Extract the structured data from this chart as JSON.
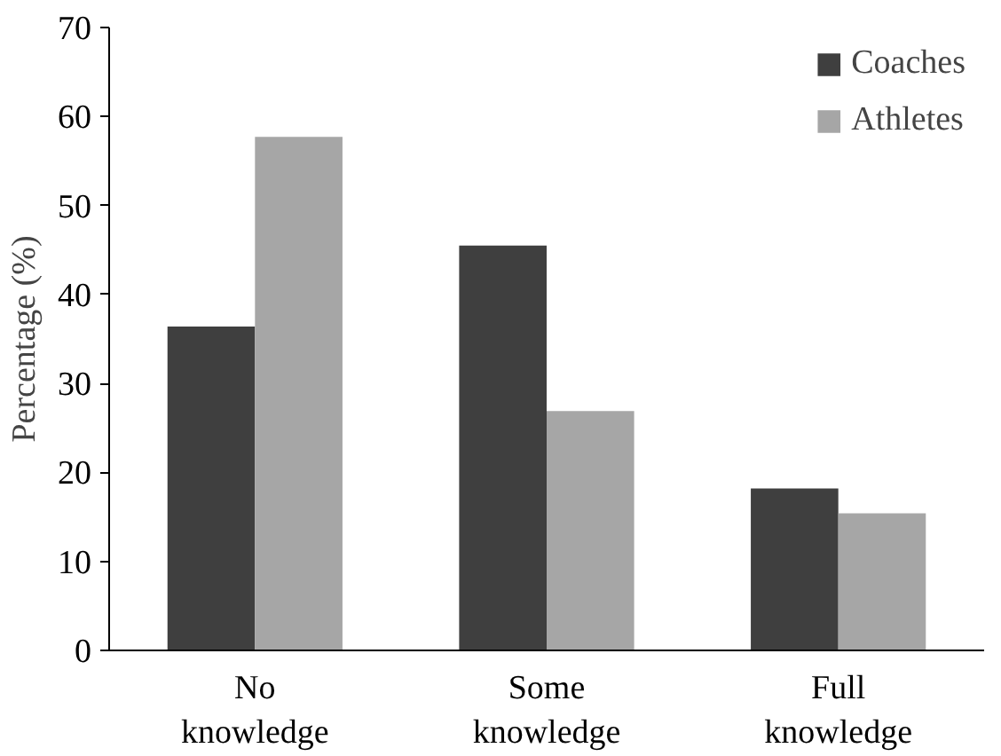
{
  "chart_data": {
    "type": "bar",
    "ylabel": "Percentage (%)",
    "categories": [
      "No\nknowledge",
      "Some\nknowledge",
      "Full\nknowledge"
    ],
    "series": [
      {
        "name": "Coaches",
        "color": "#3f3f3f",
        "values": [
          36.4,
          45.5,
          18.2
        ]
      },
      {
        "name": "Athletes",
        "color": "#a6a6a6",
        "values": [
          57.7,
          26.9,
          15.4
        ]
      }
    ],
    "ylim": [
      0,
      70
    ],
    "yticks": [
      0,
      10,
      20,
      30,
      40,
      50,
      60,
      70
    ],
    "grid": false,
    "legend": "top right"
  }
}
